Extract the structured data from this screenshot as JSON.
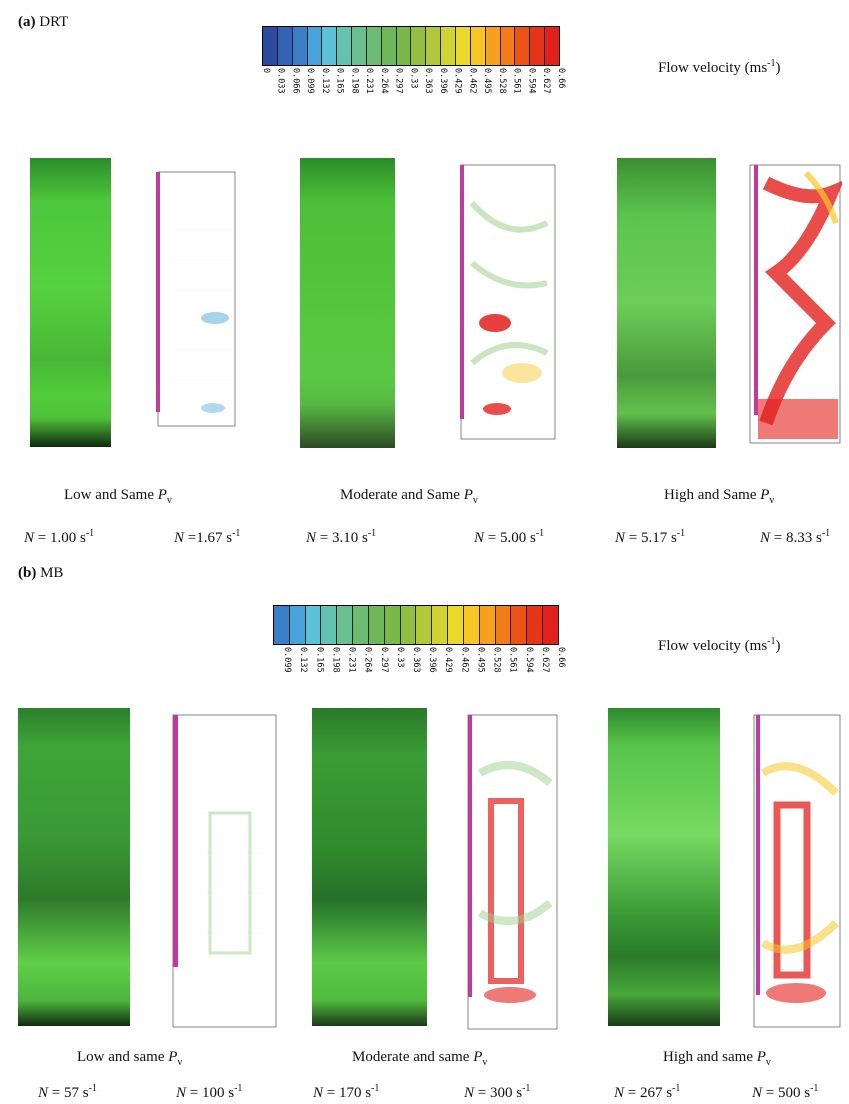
{
  "panel_a": {
    "label_letter": "(a)",
    "label_text": "DRT",
    "flow_velocity_label": "Flow velocity (ms",
    "flow_velocity_sup": "-1",
    "flow_velocity_close": ")",
    "colorbar_ticks": [
      "0",
      "0.033",
      "0.066",
      "0.099",
      "0.132",
      "0.165",
      "0.198",
      "0.231",
      "0.264",
      "0.297",
      "0.33",
      "0.363",
      "0.396",
      "0.429",
      "0.462",
      "0.495",
      "0.528",
      "0.561",
      "0.594",
      "0.627",
      "0.66"
    ],
    "colorbar_colors": [
      "#2b4aa0",
      "#3263b4",
      "#3b7fc8",
      "#47a3d9",
      "#5bc1d8",
      "#63c3b2",
      "#69bf8f",
      "#6bbb72",
      "#6fb85a",
      "#7ab84a",
      "#93bf43",
      "#b1c83b",
      "#d0d332",
      "#ead82a",
      "#f6c624",
      "#f6a01e",
      "#f27b1a",
      "#ec5417",
      "#e53519",
      "#e2201c"
    ],
    "captions": [
      {
        "prefix": "Low and Same ",
        "var": "P",
        "sub": "v"
      },
      {
        "prefix": "Moderate and Same ",
        "var": "P",
        "sub": "v"
      },
      {
        "prefix": "High and Same ",
        "var": "P",
        "sub": "v"
      }
    ],
    "speeds": [
      {
        "var": "N",
        "eq": " = 1.00 s",
        "sup": "-1"
      },
      {
        "var": "N",
        "eq": " =1.67 s",
        "sup": "-1"
      },
      {
        "var": "N",
        "eq": " = 3.10 s",
        "sup": "-1"
      },
      {
        "var": "N",
        "eq": " = 5.00 s",
        "sup": "-1"
      },
      {
        "var": "N",
        "eq": " = 5.17 s",
        "sup": "-1"
      },
      {
        "var": "N",
        "eq": " = 8.33 s",
        "sup": "-1"
      }
    ]
  },
  "panel_b": {
    "label_letter": "(b)",
    "label_text": "MB",
    "flow_velocity_label": "Flow velocity (ms",
    "flow_velocity_sup": "-1",
    "flow_velocity_close": ")",
    "colorbar_ticks": [
      "0.099",
      "0.132",
      "0.165",
      "0.198",
      "0.231",
      "0.264",
      "0.297",
      "0.33",
      "0.363",
      "0.396",
      "0.429",
      "0.462",
      "0.495",
      "0.528",
      "0.561",
      "0.594",
      "0.627",
      "0.66"
    ],
    "colorbar_colors": [
      "#3b7fc8",
      "#47a3d9",
      "#5bc1d8",
      "#63c3b2",
      "#69bf8f",
      "#6bbb72",
      "#6fb85a",
      "#7ab84a",
      "#93bf43",
      "#b1c83b",
      "#d0d332",
      "#ead82a",
      "#f6c624",
      "#f6a01e",
      "#f27b1a",
      "#ec5417",
      "#e53519",
      "#e2201c"
    ],
    "captions": [
      {
        "prefix": "Low and same ",
        "var": "P",
        "sub": "v"
      },
      {
        "prefix": "Moderate and same ",
        "var": "P",
        "sub": "v"
      },
      {
        "prefix": "High and same ",
        "var": "P",
        "sub": "v"
      }
    ],
    "speeds": [
      {
        "var": "N",
        "eq": " = 57 s",
        "sup": "-1"
      },
      {
        "var": "N",
        "eq": " = 100 s",
        "sup": "-1"
      },
      {
        "var": "N",
        "eq": " = 170 s",
        "sup": "-1"
      },
      {
        "var": "N",
        "eq": " = 300 s",
        "sup": "-1"
      },
      {
        "var": "N",
        "eq": " = 267 s",
        "sup": "-1"
      },
      {
        "var": "N",
        "eq": " = 500 s",
        "sup": "-1"
      }
    ]
  }
}
